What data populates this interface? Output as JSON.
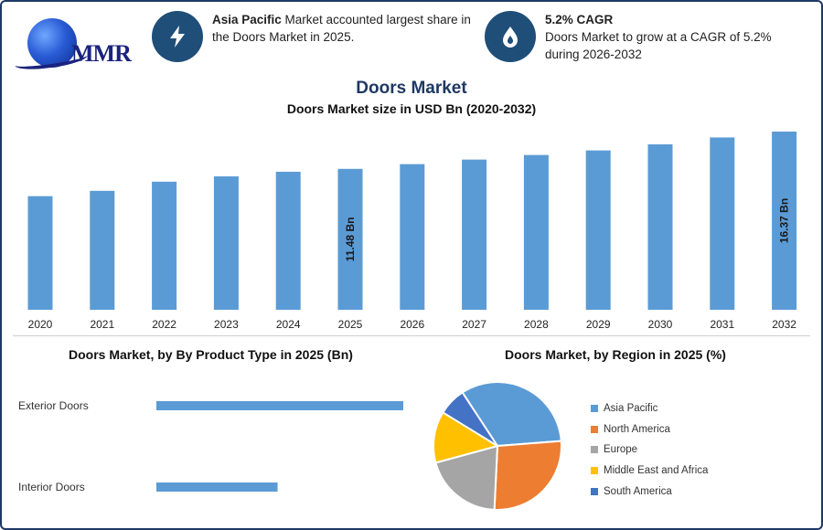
{
  "logo": {
    "text": "MMR"
  },
  "info_cards": [
    {
      "icon": "lightning-icon",
      "bold": "Asia Pacific",
      "text": " Market accounted largest share in the Doors Market in 2025."
    },
    {
      "icon": "flame-drop-icon",
      "bold": "5.2% CAGR",
      "text": "Doors Market to grow at a CAGR of 5.2% during 2026-2032"
    }
  ],
  "colors": {
    "bar": "#5b9bd5",
    "title": "#1f3864",
    "icon_bg": "#1f4e79"
  },
  "chart_data": [
    {
      "type": "bar",
      "title": "Doors Market",
      "subtitle": "Doors Market size in USD Bn (2020-2032)",
      "categories": [
        "2020",
        "2021",
        "2022",
        "2023",
        "2024",
        "2025",
        "2026",
        "2027",
        "2028",
        "2029",
        "2030",
        "2031",
        "2032"
      ],
      "values": [
        7.9,
        8.6,
        9.8,
        10.5,
        11.1,
        11.48,
        12.1,
        12.7,
        13.3,
        13.9,
        14.7,
        15.6,
        16.37
      ],
      "data_labels": [
        {
          "category": "2025",
          "label": "11.48 Bn"
        },
        {
          "category": "2032",
          "label": "16.37 Bn"
        }
      ],
      "ylim": [
        -7,
        16.37
      ],
      "color": "#5b9bd5"
    },
    {
      "type": "bar",
      "orientation": "horizontal",
      "title": "Doors Market, by By Product Type in 2025 (Bn)",
      "categories": [
        "Exterior Doors",
        "Interior Doors"
      ],
      "values": [
        7.7,
        3.78
      ],
      "xlim": [
        0,
        7.7
      ],
      "color": "#5b9bd5"
    },
    {
      "type": "pie",
      "title": "Doors Market, by Region in 2025 (%)",
      "labels": [
        "Asia Pacific",
        "North America",
        "Europe",
        "Middle East and Africa",
        "South America"
      ],
      "values": [
        33,
        27,
        20,
        13,
        7
      ],
      "colors": [
        "#5b9bd5",
        "#ed7d31",
        "#a5a5a5",
        "#ffc000",
        "#4472c4"
      ],
      "legend_position": "right"
    }
  ]
}
